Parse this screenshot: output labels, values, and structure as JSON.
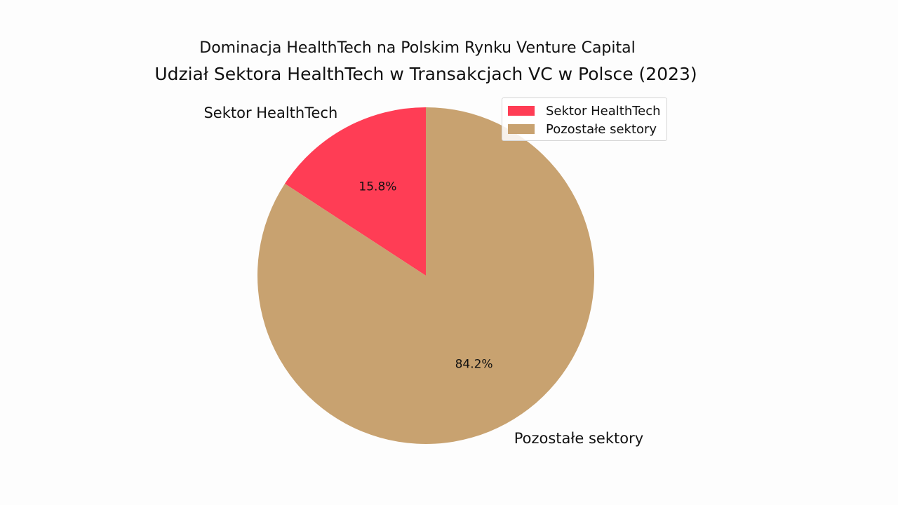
{
  "figure": {
    "title": "Dominacja HealthTech na Polskim Rynku Venture Capital"
  },
  "chart_data": {
    "type": "pie",
    "title": "Udział Sektora HealthTech w Transakcjach VC w Polsce (2023)",
    "categories": [
      "Sektor HealthTech",
      "Pozostałe sektory"
    ],
    "values": [
      15.8,
      84.2
    ],
    "value_labels": [
      "15.8%",
      "84.2%"
    ],
    "colors": [
      "#ff3d55",
      "#c8a270"
    ],
    "start_angle_deg": 90,
    "direction": "counterclockwise",
    "legend": {
      "position": "top-right",
      "entries": [
        "Sektor HealthTech",
        "Pozostałe sektory"
      ]
    }
  }
}
